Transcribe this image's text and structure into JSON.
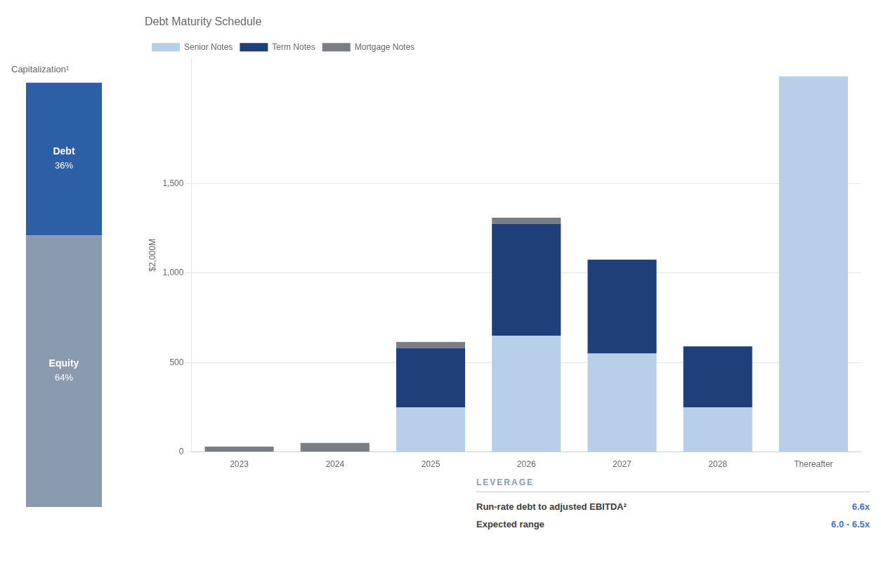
{
  "chart_data": [
    {
      "type": "bar",
      "title": "Capitalization¹",
      "stacked": true,
      "categories": [
        null
      ],
      "series": [
        {
          "name": "Equity",
          "color": "#8a9baf",
          "values": [
            64
          ],
          "value_labels": [
            "64%"
          ]
        },
        {
          "name": "Debt",
          "color": "#2d5fa6",
          "values": [
            36
          ],
          "value_labels": [
            "36%"
          ]
        }
      ],
      "ylim": [
        0,
        100
      ],
      "data_labels": true,
      "tick_labels": false,
      "grid": false
    },
    {
      "type": "bar",
      "title": "Debt Maturity Schedule",
      "ylabel": "$2,000M",
      "stacked": true,
      "categories": [
        "2023",
        "2024",
        "2025",
        "2026",
        "2027",
        "2028",
        "Thereafter"
      ],
      "series": [
        {
          "name": "Senior Notes",
          "color": "#b8cfe8",
          "values": [
            0,
            0,
            250,
            650,
            550,
            250,
            2100
          ]
        },
        {
          "name": "Term Notes",
          "color": "#1e3f7a",
          "values": [
            0,
            0,
            330,
            625,
            525,
            340,
            0
          ]
        },
        {
          "name": "Mortgage Notes",
          "color": "#7a7e82",
          "values": [
            30,
            50,
            35,
            35,
            0,
            0,
            0
          ]
        }
      ],
      "ylim": [
        0,
        2200
      ],
      "yticks": [
        0,
        500,
        {
          "value": 1000,
          "label": "1,000"
        },
        {
          "value": 1500,
          "label": "1,500"
        }
      ],
      "grid": true,
      "legend": "upper left"
    },
    {
      "type": "table",
      "title": "LEVERAGE",
      "rows": [
        [
          "Run-rate debt to adjusted EBITDA²",
          "6.6x"
        ],
        [
          "Expected range",
          "6.0 - 6.5x"
        ]
      ],
      "color": "#4472c4"
    }
  ]
}
